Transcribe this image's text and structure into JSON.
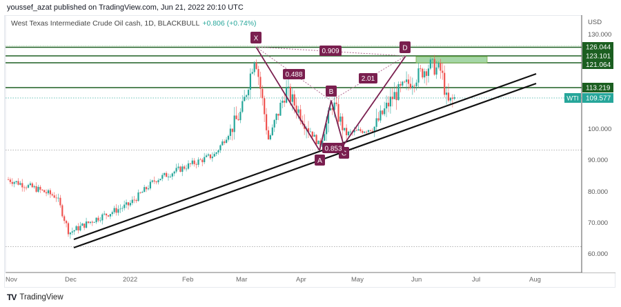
{
  "header": {
    "publisher_line": "youssef_azat published on TradingView.com, Jun 21, 2022 20:10 UTC"
  },
  "symbol": {
    "description": "West Texas Intermediate Crude Oil cash, 1D, BLACKBULL",
    "change": "+0.806 (+0.74%)"
  },
  "price_axis": {
    "currency": "USD",
    "ticks": [
      "130.000",
      "100.000",
      "90.000",
      "80.000",
      "70.000",
      "60.000"
    ],
    "level_badges": [
      "126.044",
      "123.101",
      "121.064",
      "113.219"
    ],
    "current_price": "109.577",
    "symbol_tag": "WTI"
  },
  "time_axis": {
    "ticks": [
      "Nov",
      "Dec",
      "2022",
      "Feb",
      "Mar",
      "Apr",
      "May",
      "Jun",
      "Jul",
      "Aug"
    ]
  },
  "pattern": {
    "points": [
      "X",
      "A",
      "B",
      "C",
      "D"
    ],
    "ratios": {
      "XB": "0.488",
      "AC": "0.853",
      "BD": "2.01",
      "XD": "0.909"
    }
  },
  "footer": {
    "brand": "TradingView",
    "logo": "TV"
  },
  "colors": {
    "up": "#26a69a",
    "down": "#ef5350",
    "level_line": "#1b5e20",
    "pattern": "#7a1f4f",
    "current_price": "#26a69a",
    "zone": "#a5d6a7"
  },
  "chart_data": {
    "type": "candlestick",
    "title": "West Texas Intermediate Crude Oil cash, 1D, BLACKBULL",
    "ylabel": "USD",
    "ylim": [
      57,
      133
    ],
    "x_ticks": [
      "Nov",
      "Dec",
      "2022",
      "Feb",
      "Mar",
      "Apr",
      "May",
      "Jun",
      "Jul",
      "Aug"
    ],
    "y_ticks": [
      60,
      70,
      80,
      90,
      100,
      130
    ],
    "last_price": 109.577,
    "change": 0.806,
    "change_pct": 0.74,
    "horizontal_levels": [
      126.044,
      123.101,
      121.064,
      113.219
    ],
    "dotted_levels": [
      93.0,
      62.0
    ],
    "supply_zone": {
      "from": "Jun",
      "to": "Jul",
      "low": 121.064,
      "high": 123.101
    },
    "harmonic_pattern": {
      "X": {
        "date": "Mar 7 2022",
        "price": 126.0
      },
      "A": {
        "date": "Apr 11 2022",
        "price": 93.0
      },
      "B": {
        "date": "Apr 18 2022",
        "price": 109.0
      },
      "C": {
        "date": "Apr 25 2022",
        "price": 95.0
      },
      "D": {
        "date": "May 30 2022",
        "price": 123.5
      },
      "ratios": {
        "XB": 0.488,
        "AC": 0.853,
        "BD": 2.01,
        "XD": 0.909
      }
    },
    "trendlines": [
      {
        "name": "channel-upper",
        "from": {
          "date": "Dec 2021",
          "price": 64.5
        },
        "to": {
          "date": "Aug 2022",
          "price": 117.5
        }
      },
      {
        "name": "channel-lower",
        "from": {
          "date": "Dec 2021",
          "price": 62.0
        },
        "to": {
          "date": "Aug 2022",
          "price": 114.5
        }
      }
    ],
    "approx_closes": [
      {
        "date": "Nov 1",
        "close": 83.5
      },
      {
        "date": "Nov 15",
        "close": 80.5
      },
      {
        "date": "Nov 25",
        "close": 78.0
      },
      {
        "date": "Dec 1",
        "close": 66.5
      },
      {
        "date": "Dec 15",
        "close": 71.0
      },
      {
        "date": "Jan 1",
        "close": 75.5
      },
      {
        "date": "Jan 15",
        "close": 83.5
      },
      {
        "date": "Feb 1",
        "close": 88.0
      },
      {
        "date": "Feb 15",
        "close": 91.5
      },
      {
        "date": "Mar 1",
        "close": 105.0
      },
      {
        "date": "Mar 8",
        "close": 123.5
      },
      {
        "date": "Mar 15",
        "close": 96.0
      },
      {
        "date": "Mar 24",
        "close": 112.0
      },
      {
        "date": "Apr 11",
        "close": 94.0
      },
      {
        "date": "Apr 18",
        "close": 108.0
      },
      {
        "date": "Apr 25",
        "close": 98.0
      },
      {
        "date": "May 10",
        "close": 100.0
      },
      {
        "date": "May 20",
        "close": 110.0
      },
      {
        "date": "Jun 8",
        "close": 120.0
      },
      {
        "date": "Jun 14",
        "close": 118.0
      },
      {
        "date": "Jun 17",
        "close": 107.5
      },
      {
        "date": "Jun 21",
        "close": 109.577
      }
    ]
  }
}
